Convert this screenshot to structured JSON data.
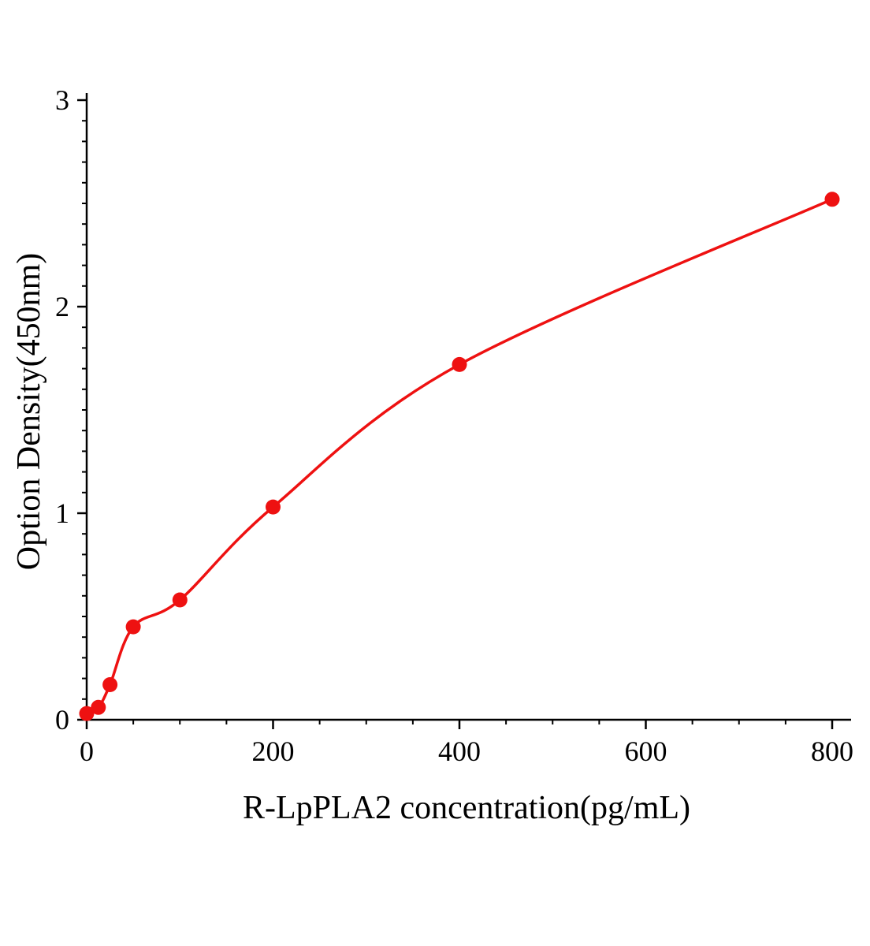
{
  "chart_data": {
    "type": "scatter",
    "title": "",
    "xlabel": "R-LpPLA2 concentration(pg/mL)",
    "ylabel": "Option Density(450nm)",
    "x": [
      0,
      12.5,
      25,
      50,
      100,
      200,
      400,
      800
    ],
    "y": [
      0.03,
      0.06,
      0.17,
      0.45,
      0.58,
      1.03,
      1.72,
      2.52
    ],
    "fit": "smooth saturation curve through points",
    "xlim": [
      0,
      820
    ],
    "ylim": [
      0,
      3
    ],
    "x_ticks": [
      0,
      200,
      400,
      600,
      800
    ],
    "y_ticks": [
      0,
      1,
      2,
      3
    ],
    "x_minor_step": 50,
    "y_minor_step": 0.1,
    "grid": "off",
    "legend": "none",
    "marker_color": "#ee1111",
    "line_color": "#ee1111",
    "axis_color": "#000000",
    "background": "#ffffff"
  }
}
